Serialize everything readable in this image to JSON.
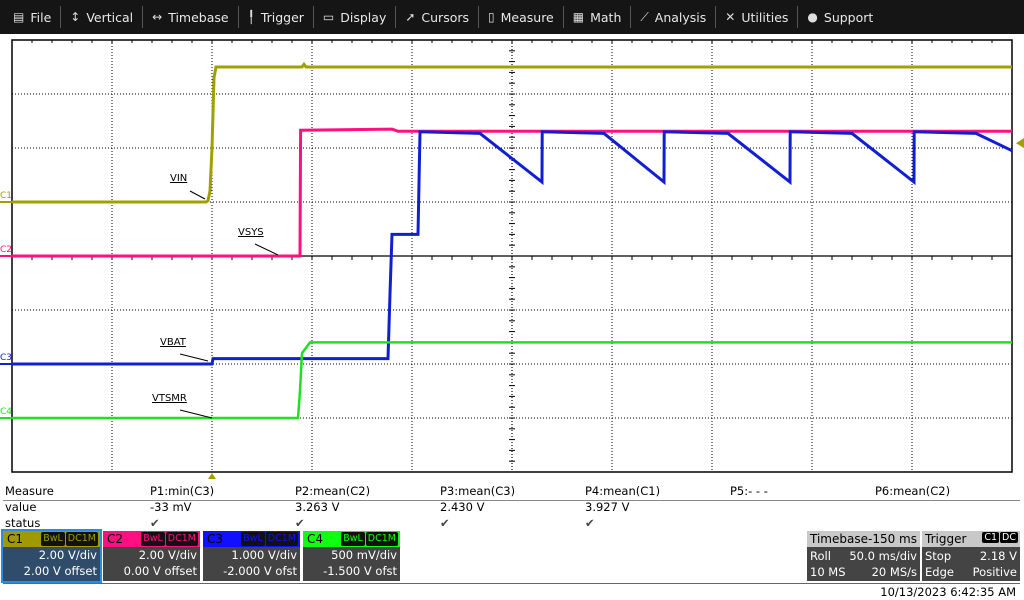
{
  "menu": [
    {
      "label": "File",
      "icon": "clipboard-icon"
    },
    {
      "label": "Vertical",
      "icon": "vertical-arrows-icon"
    },
    {
      "label": "Timebase",
      "icon": "horizontal-arrows-icon"
    },
    {
      "label": "Trigger",
      "icon": "trigger-flag-icon"
    },
    {
      "label": "Display",
      "icon": "display-icon"
    },
    {
      "label": "Cursors",
      "icon": "cursor-icon"
    },
    {
      "label": "Measure",
      "icon": "measure-icon"
    },
    {
      "label": "Math",
      "icon": "calculator-icon"
    },
    {
      "label": "Analysis",
      "icon": "analysis-icon"
    },
    {
      "label": "Utilities",
      "icon": "tools-icon"
    },
    {
      "label": "Support",
      "icon": "info-icon"
    }
  ],
  "chart_data": {
    "type": "line",
    "grid": true,
    "x_divisions": 10,
    "y_divisions": 8,
    "x_unit": "ms",
    "ms_per_div": 50,
    "series": [
      {
        "channel": "C1",
        "name": "VIN",
        "color": "#a0a000",
        "volts_per_div": 2.0,
        "offset_v": 2.0,
        "points": [
          [
            0,
            0
          ],
          [
            97,
            0
          ],
          [
            98,
            0.05
          ],
          [
            99,
            0.4
          ],
          [
            100,
            2.0
          ],
          [
            101,
            4.6
          ],
          [
            102,
            5.0
          ],
          [
            145,
            5.0
          ],
          [
            146,
            5.1
          ],
          [
            147,
            5.0
          ],
          [
            500,
            5.0
          ]
        ]
      },
      {
        "channel": "C2",
        "name": "VSYS",
        "color": "#ff1080",
        "volts_per_div": 2.0,
        "offset_v": 0.0,
        "points": [
          [
            0,
            0
          ],
          [
            144,
            0
          ],
          [
            144.3,
            4.66
          ],
          [
            190,
            4.7
          ],
          [
            193,
            4.62
          ],
          [
            500,
            4.62
          ]
        ]
      },
      {
        "channel": "C3",
        "name": "VBAT",
        "color": "#1020d0",
        "volts_per_div": 1.0,
        "offset_v": -2.0,
        "points": [
          [
            0,
            0
          ],
          [
            100,
            0
          ],
          [
            100.5,
            0.1
          ],
          [
            188,
            0.1
          ],
          [
            189,
            1.3
          ],
          [
            190,
            2.4
          ],
          [
            203,
            2.4
          ],
          [
            204,
            4.3
          ],
          [
            234,
            4.27
          ],
          [
            265,
            3.37
          ],
          [
            265.1,
            4.3
          ],
          [
            296,
            4.27
          ],
          [
            326,
            3.37
          ],
          [
            326.1,
            4.3
          ],
          [
            358,
            4.27
          ],
          [
            389,
            3.37
          ],
          [
            389.1,
            4.3
          ],
          [
            420,
            4.27
          ],
          [
            451,
            3.37
          ],
          [
            451.1,
            4.3
          ],
          [
            482,
            4.27
          ],
          [
            500,
            3.95
          ]
        ]
      },
      {
        "channel": "C4",
        "name": "VTSMR",
        "color": "#20e020",
        "volts_per_div": 0.5,
        "offset_v": -1.5,
        "points": [
          [
            0,
            0
          ],
          [
            143,
            0
          ],
          [
            144,
            0.25
          ],
          [
            145,
            0.6
          ],
          [
            149,
            0.7
          ],
          [
            500,
            0.7
          ]
        ]
      }
    ],
    "trigger_level_marker_color": "#a0a000"
  },
  "measure": {
    "row_labels": [
      "Measure",
      "value",
      "status"
    ],
    "params": [
      {
        "name": "P1:min(C3)",
        "value": "-33 mV",
        "status": "✔"
      },
      {
        "name": "P2:mean(C2)",
        "value": "3.263 V",
        "status": "✔"
      },
      {
        "name": "P3:mean(C3)",
        "value": "2.430 V",
        "status": "✔"
      },
      {
        "name": "P4:mean(C1)",
        "value": "3.927 V",
        "status": "✔"
      },
      {
        "name": "P5:- - -",
        "value": "",
        "status": ""
      },
      {
        "name": "P6:mean(C2)",
        "value": "",
        "status": ""
      }
    ]
  },
  "channels": [
    {
      "name": "C1",
      "bw": "BwL",
      "coupling": "DC1M",
      "scale": "2.00 V/div",
      "offset": "2.00 V offset",
      "color": "#a09a00"
    },
    {
      "name": "C2",
      "bw": "BwL",
      "coupling": "DC1M",
      "scale": "2.00 V/div",
      "offset": "0.00 V offset",
      "color": "#ff1080"
    },
    {
      "name": "C3",
      "bw": "BwL",
      "coupling": "DC1M",
      "scale": "1.000 V/div",
      "offset": "-2.000 V ofst",
      "color": "#1010ff"
    },
    {
      "name": "C4",
      "bw": "BwL",
      "coupling": "DC1M",
      "scale": "500 mV/div",
      "offset": "-1.500 V ofst",
      "color": "#10ff10"
    }
  ],
  "timebase": {
    "title": "Timebase",
    "delay": "-150 ms",
    "mode": "Roll",
    "scale": "50.0 ms/div",
    "samples": "10 MS",
    "rate": "20 MS/s"
  },
  "trigger": {
    "title": "Trigger",
    "source": "C1",
    "coupling": "DC",
    "state": "Stop",
    "level": "2.18 V",
    "type": "Edge",
    "slope": "Positive"
  },
  "timestamp": "10/13/2023 6:42:35 AM"
}
